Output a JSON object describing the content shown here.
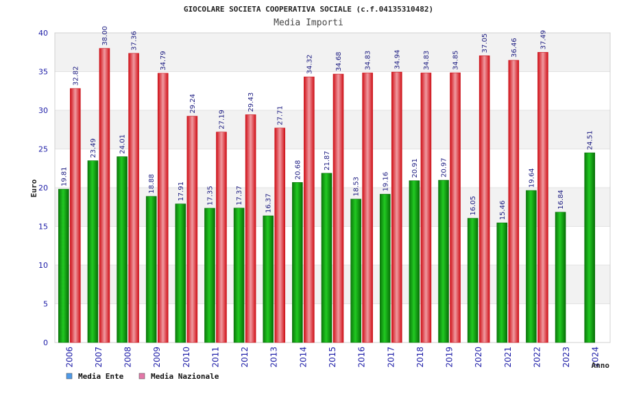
{
  "chart_data": {
    "type": "bar",
    "title": "GIOCOLARE SOCIETA COOPERATIVA SOCIALE (c.f.04135310482)",
    "subtitle": "Media Importi",
    "ylabel": "Euro",
    "xlabel": "Anno",
    "ylim": [
      0,
      40
    ],
    "yticks": [
      0,
      5,
      10,
      15,
      20,
      25,
      30,
      35,
      40
    ],
    "categories": [
      "2006",
      "2007",
      "2008",
      "2009",
      "2010",
      "2011",
      "2012",
      "2013",
      "2014",
      "2015",
      "2016",
      "2017",
      "2018",
      "2019",
      "2020",
      "2021",
      "2022",
      "2023",
      "2024"
    ],
    "series": [
      {
        "name": "Media Ente",
        "legend_color": "#4f9ae8",
        "bar_color": "#18b418",
        "values": [
          19.81,
          23.49,
          24.01,
          18.88,
          17.91,
          17.35,
          17.37,
          16.37,
          20.68,
          21.87,
          18.53,
          19.16,
          20.91,
          20.97,
          16.05,
          15.46,
          19.64,
          16.84,
          24.51
        ],
        "labels": [
          "19.81",
          "23.49",
          "24.01",
          "18.88",
          "17.91",
          "17.35",
          "17.37",
          "16.37",
          "20.68",
          "21.87",
          "18.53",
          "19.16",
          "20.91",
          "20.97",
          "16.05",
          "15.46",
          "19.64",
          "16.84",
          "24.51"
        ]
      },
      {
        "name": "Media Nazionale",
        "legend_color": "#e377a8",
        "bar_color": "#e8202a",
        "values": [
          32.82,
          38.0,
          37.36,
          34.79,
          29.24,
          27.19,
          29.43,
          27.71,
          34.32,
          34.68,
          34.83,
          34.94,
          34.83,
          34.85,
          37.05,
          36.46,
          37.49,
          null,
          null
        ],
        "labels": [
          "32.82",
          "38.00",
          "37.36",
          "34.79",
          "29.24",
          "27.19",
          "29.43",
          "27.71",
          "34.32",
          "34.68",
          "34.83",
          "34.94",
          "34.83",
          "34.85",
          "37.05",
          "36.46",
          "37.49",
          null,
          null
        ]
      }
    ],
    "grid": true,
    "legend_position": "bottom-left"
  }
}
